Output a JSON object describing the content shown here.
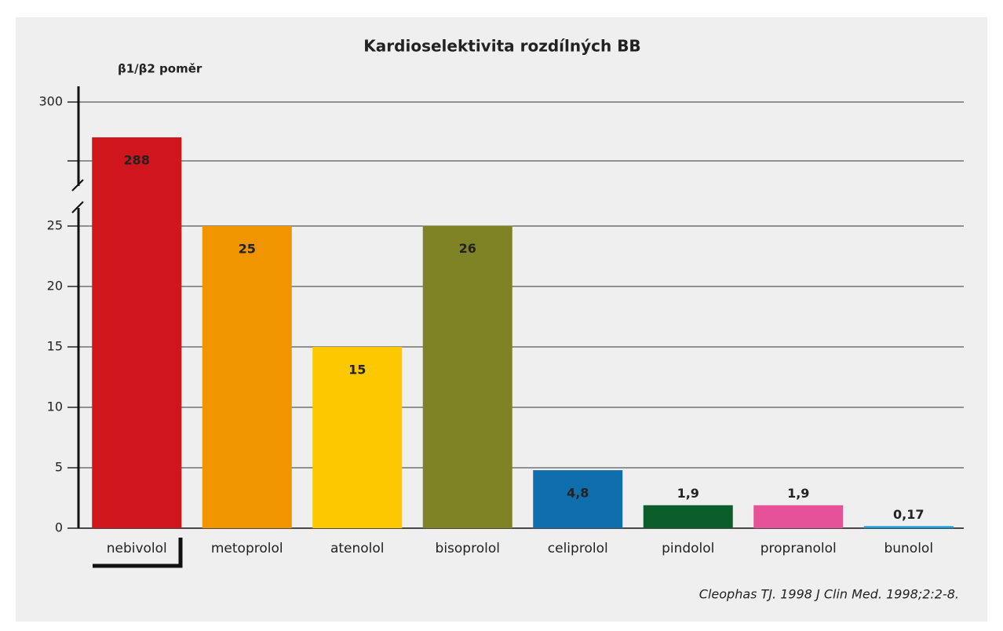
{
  "chart_data": {
    "type": "bar",
    "title": "Kardioselektivita rozdílných BB",
    "y_label": "β1/β2 poměr",
    "source": "Cleophas TJ. 1998 J Clin Med. 1998;2:2-8.",
    "categories": [
      "nebivolol",
      "metoprolol",
      "atenolol",
      "bisoprolol",
      "celiprolol",
      "pindolol",
      "propranolol",
      "bunolol"
    ],
    "values": [
      288,
      25,
      15,
      26,
      4.8,
      1.9,
      1.9,
      0.17
    ],
    "value_labels": [
      "288",
      "25",
      "15",
      "26",
      "4,8",
      "1,9",
      "1,9",
      "0,17"
    ],
    "colors": [
      "#d0161d",
      "#f09400",
      "#fdc800",
      "#808226",
      "#0f6fad",
      "#0b5e2c",
      "#e5529a",
      "#169cdc"
    ],
    "ylim": [
      0,
      300
    ],
    "ybreak": [
      25,
      280
    ],
    "yticks": [
      0,
      5,
      10,
      15,
      20,
      25,
      {
        "value": 280,
        "label": null
      },
      300
    ],
    "grid": true
  }
}
